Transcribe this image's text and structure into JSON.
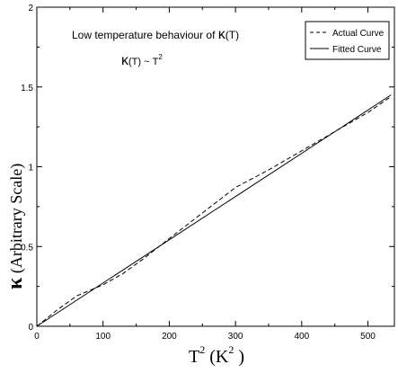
{
  "chart_data": {
    "type": "line",
    "title": "",
    "xlabel": {
      "base": "T",
      "sup": "2",
      "unit_open": " (K",
      "unit_sup": "2",
      "unit_close": " )"
    },
    "ylabel": {
      "symbol": "κ",
      "text": " (Arbitrary Scale)"
    },
    "xlim": [
      0,
      540
    ],
    "ylim": [
      0,
      2
    ],
    "xticks": [
      0,
      100,
      200,
      300,
      400,
      500
    ],
    "yticks": [
      0,
      0.5,
      1,
      1.5,
      2
    ],
    "ytick_labels": [
      "0",
      "0.5",
      "1",
      "1.5",
      "2"
    ],
    "grid": false,
    "legend_placement": "top-right",
    "annotations": {
      "line1_prefix": "Low temperature behaviour of ",
      "line1_symbol": "κ",
      "line1_suffix": "(T)",
      "line2_symbol": "κ",
      "line2_mid": "(T) ~ T",
      "line2_sup": "2"
    },
    "series": [
      {
        "name": "Actual Curve",
        "style": "dashed",
        "color": "#000000",
        "x": [
          0,
          30,
          60,
          100,
          130,
          160,
          200,
          250,
          300,
          350,
          400,
          450,
          500,
          535
        ],
        "y": [
          0,
          0.1,
          0.19,
          0.26,
          0.33,
          0.42,
          0.55,
          0.71,
          0.87,
          0.98,
          1.1,
          1.22,
          1.34,
          1.44
        ]
      },
      {
        "name": "Fitted Curve",
        "style": "solid",
        "color": "#000000",
        "x": [
          0,
          535
        ],
        "y": [
          0,
          1.45
        ]
      }
    ]
  }
}
